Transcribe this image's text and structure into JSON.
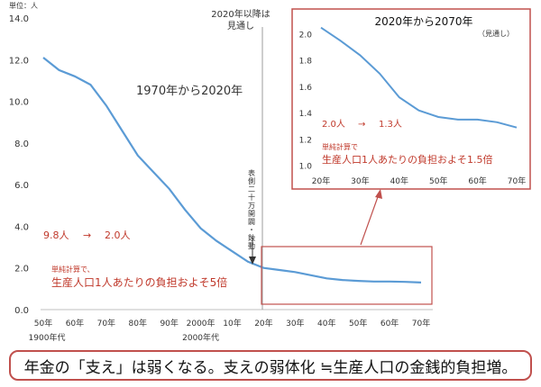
{
  "unit_label": "単位：人",
  "colors": {
    "line": "#5b9bd5",
    "accent": "#c0392b",
    "frame": "#c0504d",
    "grid": "#d9d9d9"
  },
  "chart_data": [
    {
      "type": "line",
      "title": "1970年から2020年",
      "ylim": [
        0,
        14
      ],
      "y_ticks": [
        "0.0",
        "2.0",
        "4.0",
        "6.0",
        "8.0",
        "10.0",
        "12.0",
        "14.0"
      ],
      "x_ticks": [
        "50年",
        "60年",
        "70年",
        "80年",
        "90年",
        "2000年",
        "10年",
        "20年",
        "30年",
        "40年",
        "50年",
        "60年",
        "70年"
      ],
      "x_sub_labels": {
        "left": "1900年代",
        "mid": "2000年代"
      },
      "x": [
        1950,
        1955,
        1960,
        1965,
        1970,
        1975,
        1980,
        1985,
        1990,
        1995,
        2000,
        2005,
        2010,
        2015,
        2020,
        2025,
        2030,
        2035,
        2040,
        2045,
        2050,
        2055,
        2060,
        2065,
        2070
      ],
      "values": [
        12.1,
        11.5,
        11.2,
        10.8,
        9.8,
        8.6,
        7.4,
        6.6,
        5.8,
        4.8,
        3.9,
        3.3,
        2.8,
        2.3,
        2.0,
        1.9,
        1.8,
        1.65,
        1.5,
        1.42,
        1.38,
        1.35,
        1.35,
        1.33,
        1.3
      ],
      "divider_label": [
        "2020年以降は",
        "見通し"
      ],
      "vertical_note": "表側二十万開闢・蝕動",
      "annotation_change": {
        "from": "9.8人",
        "arrow": "→",
        "to": "2.0人"
      },
      "annotation_small": "単純計算で、",
      "annotation_main": "生産人口1人あたりの負担およそ5倍"
    },
    {
      "type": "line",
      "title": "2020年から2070年",
      "subtitle": "（見通し）",
      "ylim": [
        1.0,
        2.1
      ],
      "y_ticks": [
        "1.0",
        "1.2",
        "1.4",
        "1.6",
        "1.8",
        "2.0"
      ],
      "x_ticks": [
        "20年",
        "30年",
        "40年",
        "50年",
        "60年",
        "70年"
      ],
      "x": [
        2020,
        2025,
        2030,
        2035,
        2040,
        2045,
        2050,
        2055,
        2060,
        2065,
        2070
      ],
      "values": [
        2.05,
        1.95,
        1.84,
        1.7,
        1.52,
        1.42,
        1.37,
        1.35,
        1.35,
        1.33,
        1.29
      ],
      "annotation_change": {
        "from": "2.0人",
        "arrow": "→",
        "to": "1.3人"
      },
      "annotation_small": "単純計算で",
      "annotation_main": "生産人口1人あたりの負担およそ1.5倍"
    }
  ],
  "caption": "年金の「支え」は弱くなる。支えの弱体化 ≒生産人口の金銭的負担増。"
}
